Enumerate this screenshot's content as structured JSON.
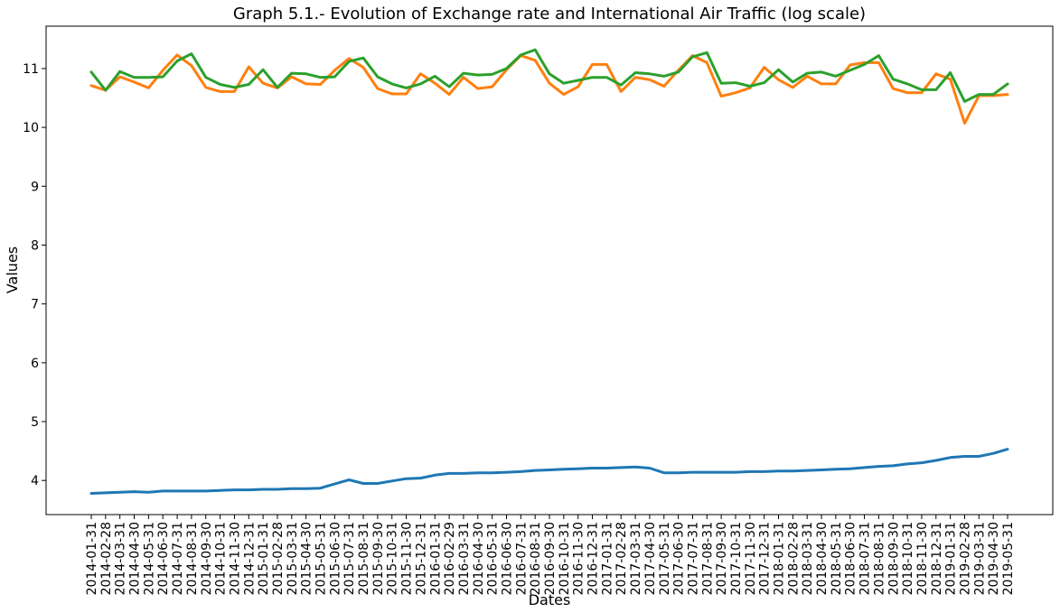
{
  "chart_data": {
    "type": "line",
    "title": "Graph 5.1.- Evolution of Exchange rate and International Air Traffic (log scale)",
    "xlabel": "Dates",
    "ylabel": "Values",
    "ylim": [
      3.42,
      11.72
    ],
    "y_ticks": [
      4,
      5,
      6,
      7,
      8,
      9,
      10,
      11
    ],
    "grid": false,
    "x": [
      "2014-01-31",
      "2014-02-28",
      "2014-03-31",
      "2014-04-30",
      "2014-05-31",
      "2014-06-30",
      "2014-07-31",
      "2014-08-31",
      "2014-09-30",
      "2014-10-31",
      "2014-11-30",
      "2014-12-31",
      "2015-01-31",
      "2015-02-28",
      "2015-03-31",
      "2015-04-30",
      "2015-05-31",
      "2015-06-30",
      "2015-07-31",
      "2015-08-31",
      "2015-09-30",
      "2015-10-31",
      "2015-11-30",
      "2015-12-31",
      "2016-01-31",
      "2016-02-29",
      "2016-03-31",
      "2016-04-30",
      "2016-05-31",
      "2016-06-30",
      "2016-07-31",
      "2016-08-31",
      "2016-09-30",
      "2016-10-31",
      "2016-11-30",
      "2016-12-31",
      "2017-01-31",
      "2017-02-28",
      "2017-03-31",
      "2017-04-30",
      "2017-05-31",
      "2017-06-30",
      "2017-07-31",
      "2017-08-31",
      "2017-09-30",
      "2017-10-31",
      "2017-11-30",
      "2017-12-31",
      "2018-01-31",
      "2018-02-28",
      "2018-03-31",
      "2018-04-30",
      "2018-05-31",
      "2018-06-30",
      "2018-07-31",
      "2018-08-31",
      "2018-09-30",
      "2018-10-31",
      "2018-11-30",
      "2018-12-31",
      "2019-01-31",
      "2019-02-28",
      "2019-03-31",
      "2019-04-30",
      "2019-05-31"
    ],
    "series": [
      {
        "color": "#1f77b4",
        "values": [
          3.78,
          3.79,
          3.8,
          3.81,
          3.8,
          3.82,
          3.82,
          3.82,
          3.82,
          3.83,
          3.84,
          3.84,
          3.85,
          3.85,
          3.86,
          3.86,
          3.87,
          3.94,
          4.01,
          3.95,
          3.95,
          3.99,
          4.03,
          4.04,
          4.09,
          4.12,
          4.12,
          4.13,
          4.13,
          4.14,
          4.15,
          4.17,
          4.18,
          4.19,
          4.2,
          4.21,
          4.21,
          4.22,
          4.23,
          4.21,
          4.13,
          4.13,
          4.14,
          4.14,
          4.14,
          4.14,
          4.15,
          4.15,
          4.16,
          4.16,
          4.17,
          4.18,
          4.19,
          4.2,
          4.22,
          4.24,
          4.25,
          4.28,
          4.3,
          4.34,
          4.39,
          4.41,
          4.41,
          4.46,
          4.53
        ]
      },
      {
        "color": "#ff7f0e",
        "values": [
          10.71,
          10.63,
          10.86,
          10.77,
          10.67,
          10.97,
          11.23,
          11.05,
          10.68,
          10.61,
          10.61,
          11.03,
          10.75,
          10.67,
          10.86,
          10.74,
          10.73,
          10.97,
          11.17,
          11.02,
          10.66,
          10.57,
          10.57,
          10.91,
          10.75,
          10.56,
          10.85,
          10.66,
          10.69,
          10.98,
          11.22,
          11.14,
          10.75,
          10.56,
          10.69,
          11.07,
          11.07,
          10.61,
          10.85,
          10.81,
          10.7,
          10.97,
          11.22,
          11.1,
          10.53,
          10.59,
          10.67,
          11.02,
          10.81,
          10.68,
          10.87,
          10.74,
          10.74,
          11.06,
          11.1,
          11.1,
          10.66,
          10.59,
          10.59,
          10.91,
          10.82,
          10.07,
          10.54,
          10.54,
          10.56
        ]
      },
      {
        "color": "#2ca02c",
        "values": [
          10.94,
          10.63,
          10.95,
          10.85,
          10.85,
          10.86,
          11.13,
          11.25,
          10.85,
          10.73,
          10.68,
          10.73,
          10.98,
          10.68,
          10.92,
          10.91,
          10.85,
          10.86,
          11.12,
          11.18,
          10.86,
          10.74,
          10.67,
          10.74,
          10.87,
          10.69,
          10.92,
          10.89,
          10.9,
          11.0,
          11.23,
          11.32,
          10.91,
          10.75,
          10.8,
          10.85,
          10.85,
          10.72,
          10.93,
          10.91,
          10.87,
          10.94,
          11.2,
          11.27,
          10.75,
          10.76,
          10.7,
          10.76,
          10.98,
          10.77,
          10.92,
          10.94,
          10.87,
          10.97,
          11.07,
          11.22,
          10.82,
          10.74,
          10.64,
          10.64,
          10.93,
          10.44,
          10.56,
          10.56,
          10.74
        ]
      }
    ]
  }
}
